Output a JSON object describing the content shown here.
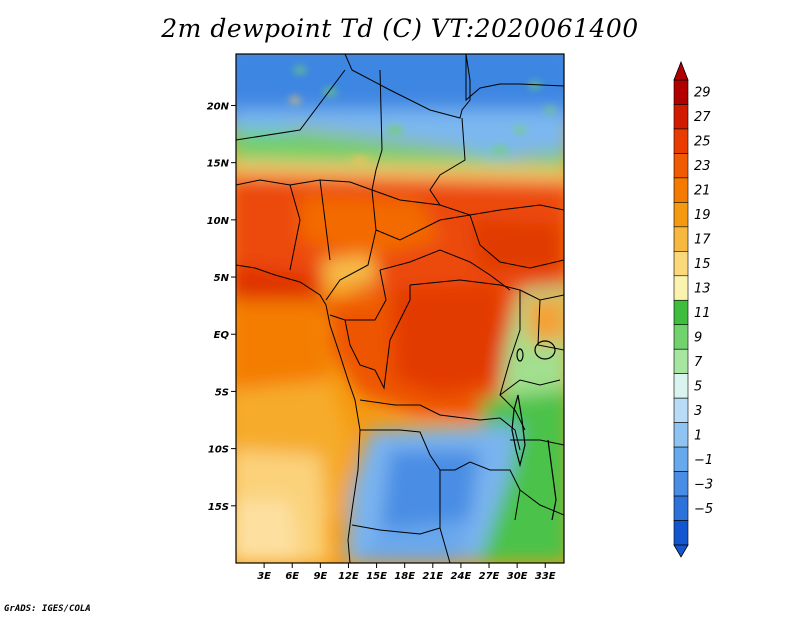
{
  "title": "2m dewpoint Td (C) VT:2020061400",
  "credit": "GrADS: IGES/COLA",
  "map": {
    "lat_labels": [
      "20N",
      "15N",
      "10N",
      "5N",
      "EQ",
      "5S",
      "10S",
      "15S"
    ],
    "lat_values": [
      20,
      15,
      10,
      5,
      0,
      -5,
      -10,
      -15
    ],
    "lon_labels": [
      "3E",
      "6E",
      "9E",
      "12E",
      "15E",
      "18E",
      "21E",
      "24E",
      "27E",
      "30E",
      "33E"
    ],
    "lon_values": [
      3,
      6,
      9,
      12,
      15,
      18,
      21,
      24,
      27,
      30,
      33
    ],
    "lon_range": [
      0,
      35
    ],
    "lat_range": [
      -20,
      24.5
    ]
  },
  "colorbar": {
    "labels": [
      "29",
      "27",
      "25",
      "23",
      "21",
      "19",
      "17",
      "15",
      "13",
      "11",
      "9",
      "7",
      "5",
      "3",
      "1",
      "−1",
      "−3",
      "−5"
    ],
    "colors": [
      "#b00000",
      "#d21a00",
      "#e83c00",
      "#f05a00",
      "#f47a00",
      "#f59a10",
      "#f7b840",
      "#fbd87a",
      "#fcf2b0",
      "#3fbd3f",
      "#72d36e",
      "#a6e6a1",
      "#d9f3ee",
      "#b8dcf7",
      "#8fc4f2",
      "#68a8ec",
      "#4a8de4",
      "#2d71db",
      "#1456cf"
    ]
  }
}
